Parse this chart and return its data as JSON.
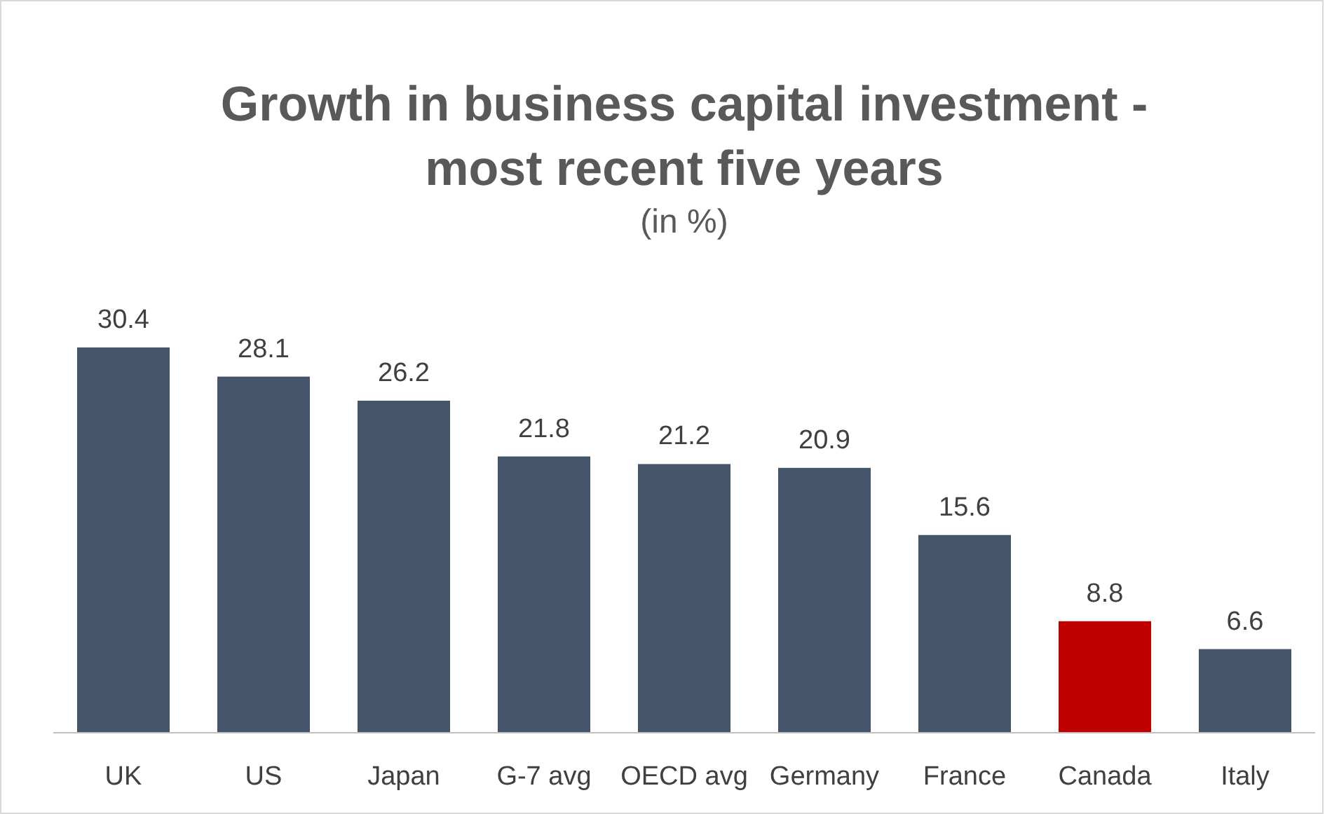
{
  "chart_data": {
    "type": "bar",
    "title": "Growth in business capital investment - most recent five years",
    "subtitle": "(in %)",
    "categories": [
      "UK",
      "US",
      "Japan",
      "G-7 avg",
      "OECD avg",
      "Germany",
      "France",
      "Canada",
      "Italy"
    ],
    "values": [
      30.4,
      28.1,
      26.2,
      21.8,
      21.2,
      20.9,
      15.6,
      8.8,
      6.6
    ],
    "colors": [
      "#44546a",
      "#44546a",
      "#44546a",
      "#44546a",
      "#44546a",
      "#44546a",
      "#44546a",
      "#c00000",
      "#44546a"
    ],
    "data_labels": true
  }
}
